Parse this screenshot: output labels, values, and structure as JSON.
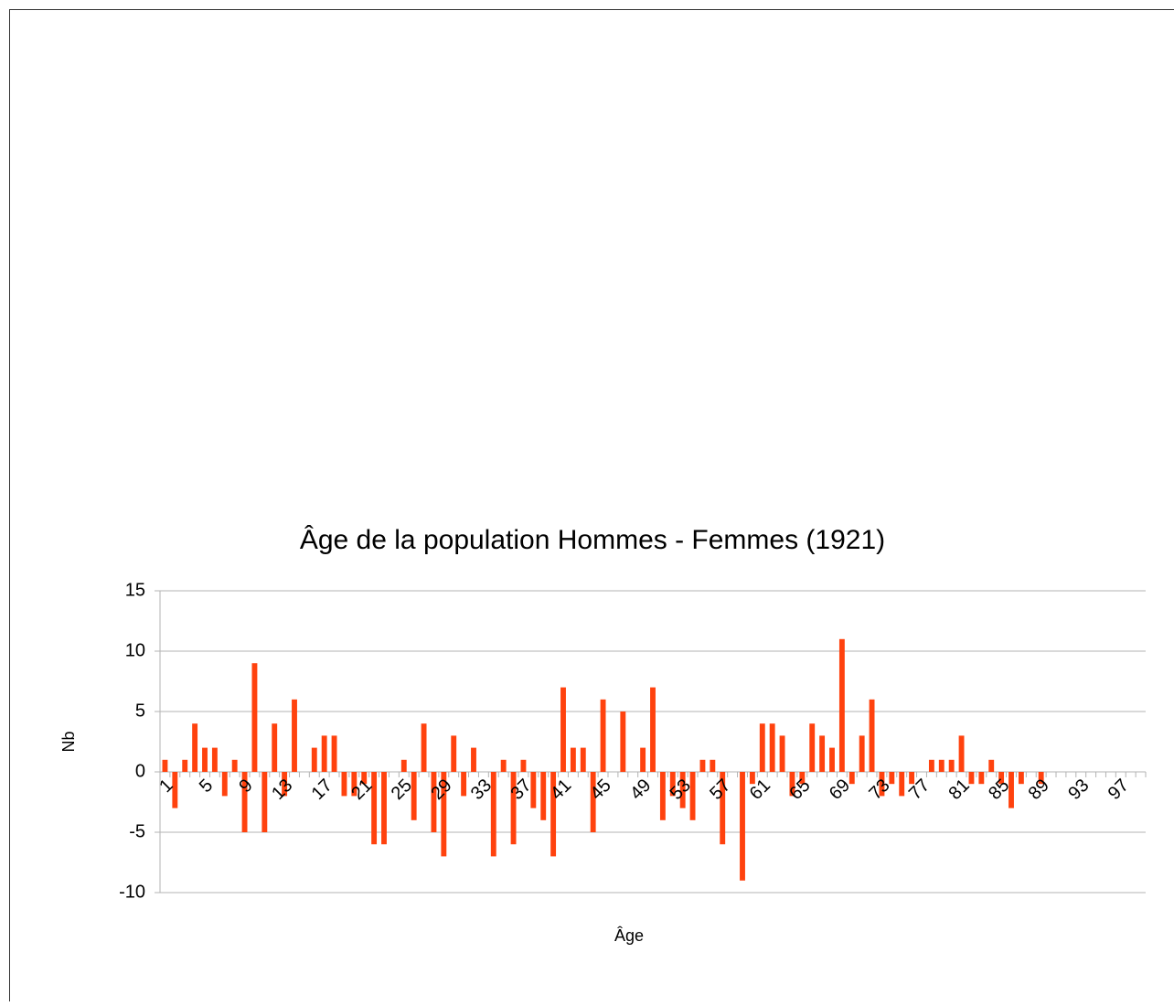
{
  "chart_data": {
    "type": "bar",
    "title": "Âge de la population Hommes - Femmes (1921)",
    "x_label": "Âge",
    "y_label": "Nb",
    "color": "#ff420e",
    "grid": true,
    "categories": [
      "1",
      null,
      null,
      null,
      "5",
      null,
      null,
      null,
      "9",
      null,
      null,
      null,
      "13",
      null,
      null,
      null,
      "17",
      null,
      null,
      null,
      "21",
      null,
      null,
      null,
      "25",
      null,
      null,
      null,
      "29",
      null,
      null,
      null,
      "33",
      null,
      null,
      null,
      "37",
      null,
      null,
      null,
      "41",
      null,
      null,
      null,
      "45",
      null,
      null,
      null,
      "49",
      null,
      null,
      null,
      "53",
      null,
      null,
      null,
      "57",
      null,
      null,
      null,
      "61",
      null,
      null,
      null,
      "65",
      null,
      null,
      null,
      "69",
      null,
      null,
      null,
      "73",
      null,
      null,
      null,
      "77",
      null,
      null,
      null,
      "81",
      null,
      null,
      null,
      "85",
      null,
      null,
      null,
      "89",
      null,
      null,
      null,
      "93",
      null,
      null,
      null,
      "97",
      null,
      null
    ],
    "values": [
      1,
      -3,
      1,
      4,
      2,
      2,
      -2,
      1,
      -5,
      9,
      -5,
      4,
      -2,
      6,
      0,
      2,
      3,
      3,
      -2,
      -2,
      -1,
      -6,
      -6,
      0,
      1,
      -4,
      4,
      -5,
      -7,
      3,
      -2,
      2,
      0,
      -7,
      1,
      -6,
      1,
      -3,
      -4,
      -7,
      7,
      2,
      2,
      -5,
      6,
      0,
      5,
      0,
      2,
      7,
      -4,
      -2,
      -3,
      -4,
      1,
      1,
      -6,
      0,
      -9,
      -1,
      4,
      4,
      3,
      -2,
      -1,
      4,
      3,
      2,
      11,
      -1,
      3,
      6,
      -2,
      -1,
      -2,
      -1,
      0,
      1,
      1,
      1,
      3,
      -1,
      -1,
      1,
      -1,
      -3,
      -1,
      0,
      -1,
      0,
      0,
      0,
      0,
      0,
      0,
      0,
      0,
      0,
      0
    ],
    "ylim": [
      -10,
      15
    ],
    "yticks": [
      -10,
      -5,
      0,
      5,
      10,
      15
    ]
  }
}
